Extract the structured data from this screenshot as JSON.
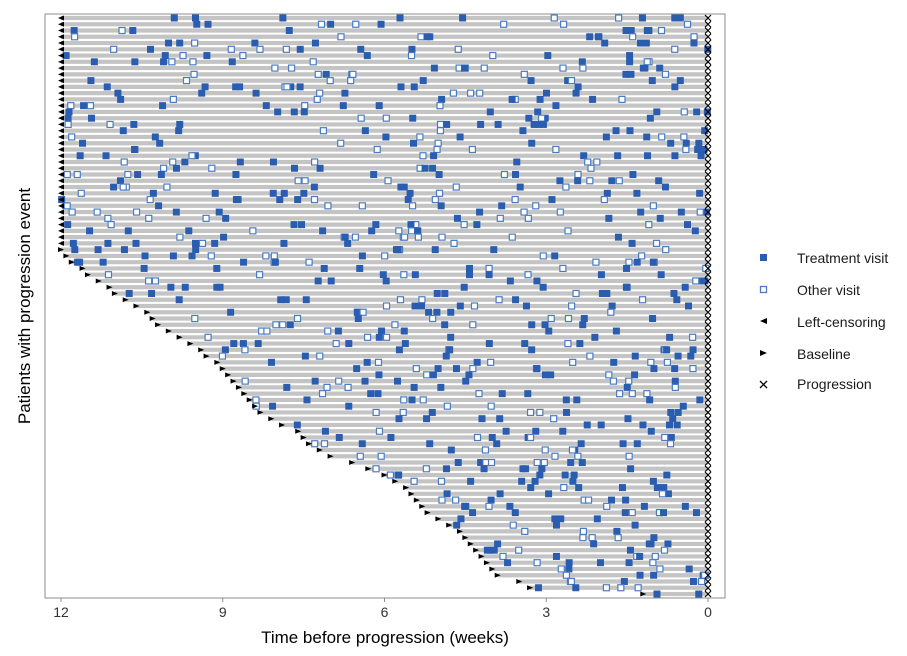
{
  "chart_data": {
    "type": "scatter",
    "title": "",
    "xlabel": "Time before progression (weeks)",
    "ylabel": "Patients with progression event",
    "xlim": [
      12,
      0
    ],
    "x_ticks": [
      "12",
      "9",
      "6",
      "3",
      "0"
    ],
    "x_tick_values": [
      12,
      9,
      6,
      3,
      0
    ],
    "n_patients": 93,
    "grid": false,
    "legend_position": "right",
    "colors": {
      "treatment": "#2a5db0",
      "other": "#4a7cc4",
      "row": "#c4c4c4",
      "marker": "#000000"
    },
    "legend": [
      {
        "key": "treatment",
        "label": "Treatment visit"
      },
      {
        "key": "other",
        "label": "Other visit"
      },
      {
        "key": "leftcensor",
        "label": "Left-censoring"
      },
      {
        "key": "baseline",
        "label": "Baseline"
      },
      {
        "key": "progression",
        "label": "Progression"
      }
    ],
    "baseline_weeks": [
      12,
      12,
      12,
      12,
      12,
      12,
      12,
      12,
      12,
      12,
      12,
      12,
      12,
      12,
      12,
      12,
      12,
      12,
      12,
      12,
      12,
      12,
      12,
      12,
      12,
      12,
      12,
      12,
      12,
      12,
      12,
      12,
      12,
      12,
      12,
      12,
      12,
      12,
      11.9,
      11.8,
      11.6,
      11.5,
      11.3,
      11.1,
      11.0,
      10.8,
      10.6,
      10.4,
      10.3,
      10.2,
      10.0,
      9.8,
      9.6,
      9.4,
      9.3,
      9.1,
      9.0,
      8.9,
      8.8,
      8.7,
      8.6,
      8.5,
      8.4,
      8.3,
      8.1,
      7.9,
      7.6,
      7.5,
      7.4,
      7.2,
      7.0,
      6.6,
      6.3,
      6.0,
      5.8,
      5.6,
      5.5,
      5.4,
      5.3,
      5.2,
      5.0,
      4.8,
      4.6,
      4.5,
      4.4,
      4.3,
      4.2,
      4.1,
      4.0,
      3.9,
      3.5,
      3.3,
      1.2
    ],
    "left_censored_rows": 37,
    "events_per_row": 9,
    "event_seed": 20240517
  }
}
